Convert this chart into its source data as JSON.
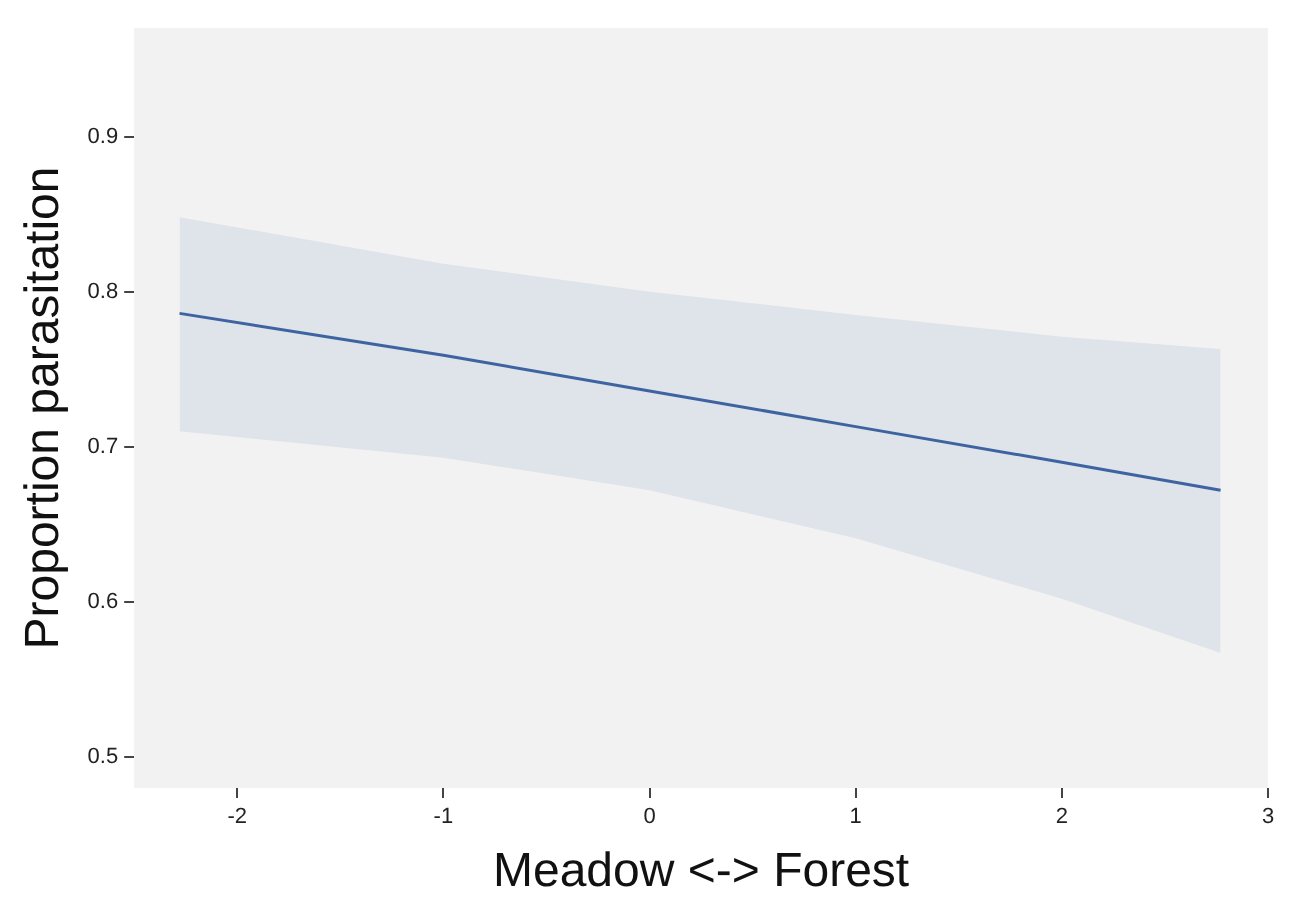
{
  "chart_data": {
    "type": "line",
    "xlabel": "Meadow <-> Forest",
    "ylabel": "Proportion parasitation",
    "x": [
      -2.28,
      -1,
      0,
      1,
      2,
      2.77
    ],
    "series": [
      {
        "color": "#3d64a0",
        "values": [
          0.786,
          0.759,
          0.736,
          0.713,
          0.69,
          0.672
        ],
        "lower": [
          0.71,
          0.693,
          0.672,
          0.641,
          0.602,
          0.567
        ],
        "upper": [
          0.848,
          0.818,
          0.8,
          0.785,
          0.771,
          0.763
        ]
      }
    ],
    "xlim": [
      -2.5,
      3
    ],
    "xticks": [
      -2,
      -1,
      0,
      1,
      2,
      3
    ],
    "ylim": [
      0.48,
      0.97
    ],
    "yticks": [
      0.5,
      0.6,
      0.7,
      0.8,
      0.9
    ],
    "grid": false,
    "legend": false,
    "marker": "none"
  }
}
